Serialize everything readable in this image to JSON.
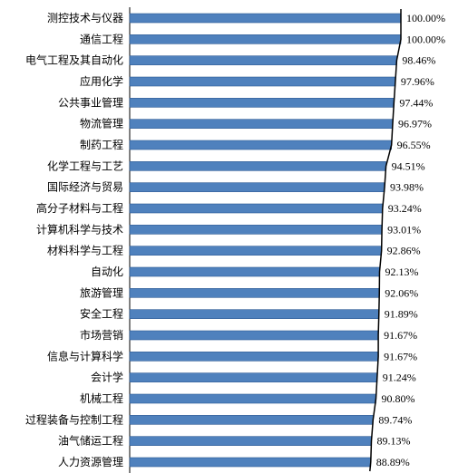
{
  "chart_data": {
    "type": "bar",
    "orientation": "horizontal",
    "title": "",
    "xlabel": "",
    "ylabel": "",
    "xlim": [
      0,
      100
    ],
    "grid": false,
    "legend": "none",
    "bar_color": "#4f81bd",
    "bar_edge_color": "#2e5b94",
    "trend_line_color": "#000000",
    "categories": [
      "测控技术与仪器",
      "通信工程",
      "电气工程及其自动化",
      "应用化学",
      "公共事业管理",
      "物流管理",
      "制药工程",
      "化学工程与工艺",
      "国际经济与贸易",
      "高分子材料与工程",
      "计算机科学与技术",
      "材料科学与工程",
      "自动化",
      "旅游管理",
      "安全工程",
      "市场营销",
      "信息与计算科学",
      "会计学",
      "机械工程",
      "过程装备与控制工程",
      "油气储运工程",
      "人力资源管理"
    ],
    "values": [
      100.0,
      100.0,
      98.46,
      97.96,
      97.44,
      96.97,
      96.55,
      94.51,
      93.98,
      93.24,
      93.01,
      92.86,
      92.13,
      92.06,
      91.89,
      91.67,
      91.67,
      91.24,
      90.8,
      89.74,
      89.13,
      88.89
    ],
    "value_labels": [
      "100.00%",
      "100.00%",
      "98.46%",
      "97.96%",
      "97.44%",
      "96.97%",
      "96.55%",
      "94.51%",
      "93.98%",
      "93.24%",
      "93.01%",
      "92.86%",
      "92.13%",
      "92.06%",
      "91.89%",
      "91.67%",
      "91.67%",
      "91.24%",
      "90.80%",
      "89.74%",
      "89.13%",
      "88.89%"
    ]
  }
}
